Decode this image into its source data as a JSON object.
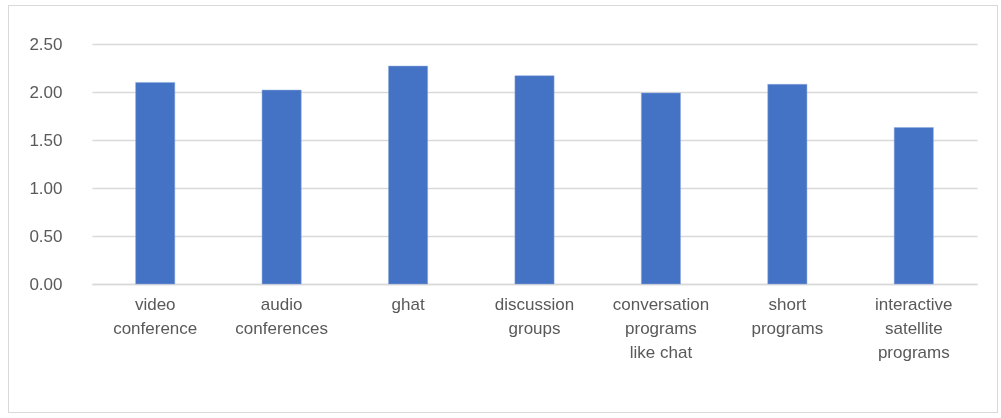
{
  "chart_data": {
    "type": "bar",
    "categories": [
      "video conference",
      "audio conferences",
      "ghat",
      "discussion groups",
      "conversation programs like chat",
      "short programs",
      "interactive satellite programs"
    ],
    "values": [
      2.1,
      2.02,
      2.27,
      2.17,
      1.99,
      2.08,
      1.63
    ],
    "color": "#4472c4",
    "ylim": [
      0,
      2.5
    ],
    "yticks": [
      {
        "value": 0,
        "label": "0.00"
      },
      {
        "value": 0.5,
        "label": "0.50"
      },
      {
        "value": 1,
        "label": "1.00"
      },
      {
        "value": 1.5,
        "label": "1.50"
      },
      {
        "value": 2,
        "label": "2.00"
      },
      {
        "value": 2.5,
        "label": "2.50"
      }
    ],
    "grid": "y"
  }
}
